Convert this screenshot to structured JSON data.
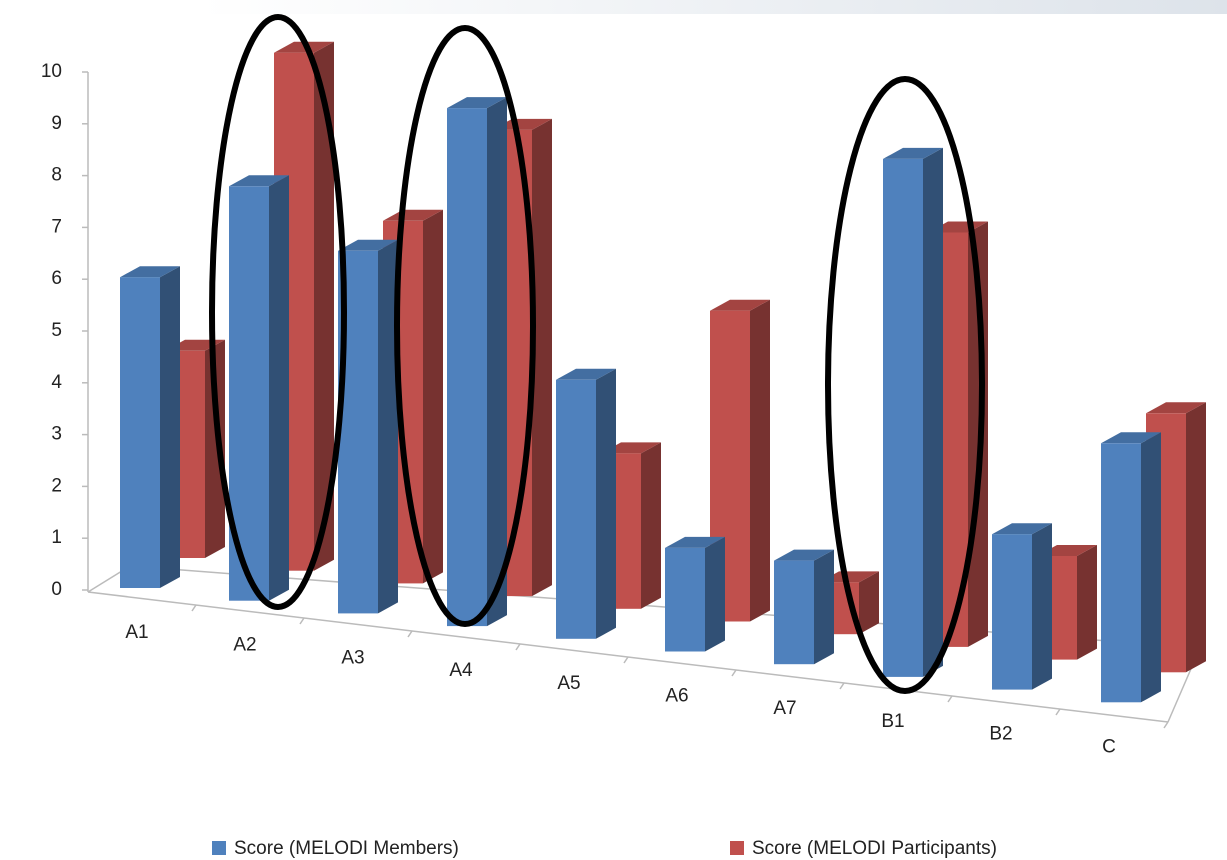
{
  "chart_data": {
    "type": "bar3d",
    "categories": [
      "A1",
      "A2",
      "A3",
      "A4",
      "A5",
      "A6",
      "A7",
      "B1",
      "B2",
      "C"
    ],
    "series": [
      {
        "name": "Score (MELODI Members)",
        "color": "#4f81bd",
        "values": [
          6,
          8,
          7,
          10,
          5,
          2,
          2,
          10,
          3,
          5
        ]
      },
      {
        "name": "Score (MELODI Participants)",
        "color": "#c0504d",
        "values": [
          4,
          10,
          7,
          9,
          3,
          6,
          1,
          8,
          2,
          5
        ]
      }
    ],
    "ylim": [
      0,
      10
    ],
    "yticks": [
      0,
      1,
      2,
      3,
      4,
      5,
      6,
      7,
      8,
      9,
      10
    ]
  }
}
